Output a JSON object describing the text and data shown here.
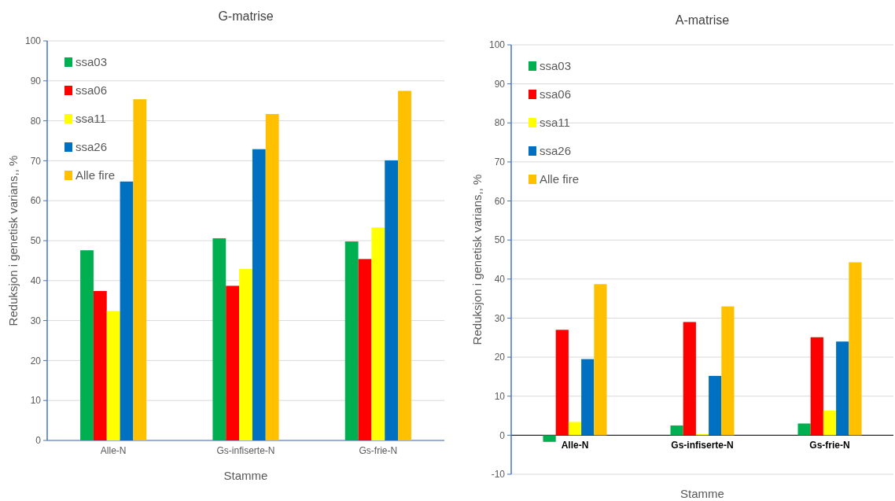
{
  "chart_data": [
    {
      "type": "bar",
      "title": "G-matrise",
      "xlabel": "Stamme",
      "ylabel": "Reduksjon i genetisk varians,, %",
      "categories": [
        "Alle-N",
        "Gs-infiserte-N",
        "Gs-frie-N"
      ],
      "ylim": [
        0,
        100
      ],
      "yticks": [
        0,
        10,
        20,
        30,
        40,
        50,
        60,
        70,
        80,
        90,
        100
      ],
      "grid": "y",
      "legend": "top left",
      "series": [
        {
          "name": "ssa03",
          "color": "#00b050",
          "values": [
            47.6,
            50.6,
            49.8
          ]
        },
        {
          "name": "ssa06",
          "color": "#ff0000",
          "values": [
            37.4,
            38.7,
            45.4
          ]
        },
        {
          "name": "ssa11",
          "color": "#ffff00",
          "values": [
            32.4,
            42.9,
            53.3
          ]
        },
        {
          "name": "ssa26",
          "color": "#0070c0",
          "values": [
            64.8,
            72.9,
            70.1
          ]
        },
        {
          "name": "Alle fire",
          "color": "#ffc000",
          "values": [
            85.4,
            81.7,
            87.5
          ]
        }
      ]
    },
    {
      "type": "bar",
      "title": "A-matrise",
      "xlabel": "Stamme",
      "ylabel": "Reduksjon i genetisk varians,, %",
      "categories": [
        "Alle-N",
        "Gs-infiserte-N",
        "Gs-frie-N"
      ],
      "ylim": [
        -10,
        100
      ],
      "yticks": [
        -10,
        0,
        10,
        20,
        30,
        40,
        50,
        60,
        70,
        80,
        90,
        100
      ],
      "grid": "y",
      "legend": "top left",
      "series": [
        {
          "name": "ssa03",
          "color": "#00b050",
          "values": [
            -1.7,
            2.5,
            3.0
          ]
        },
        {
          "name": "ssa06",
          "color": "#ff0000",
          "values": [
            27.0,
            29.0,
            25.1
          ]
        },
        {
          "name": "ssa11",
          "color": "#ffff00",
          "values": [
            3.4,
            0.3,
            6.3
          ]
        },
        {
          "name": "ssa26",
          "color": "#0070c0",
          "values": [
            19.5,
            15.2,
            24.0
          ]
        },
        {
          "name": "Alle fire",
          "color": "#ffc000",
          "values": [
            38.7,
            33.0,
            44.3
          ]
        }
      ]
    }
  ]
}
